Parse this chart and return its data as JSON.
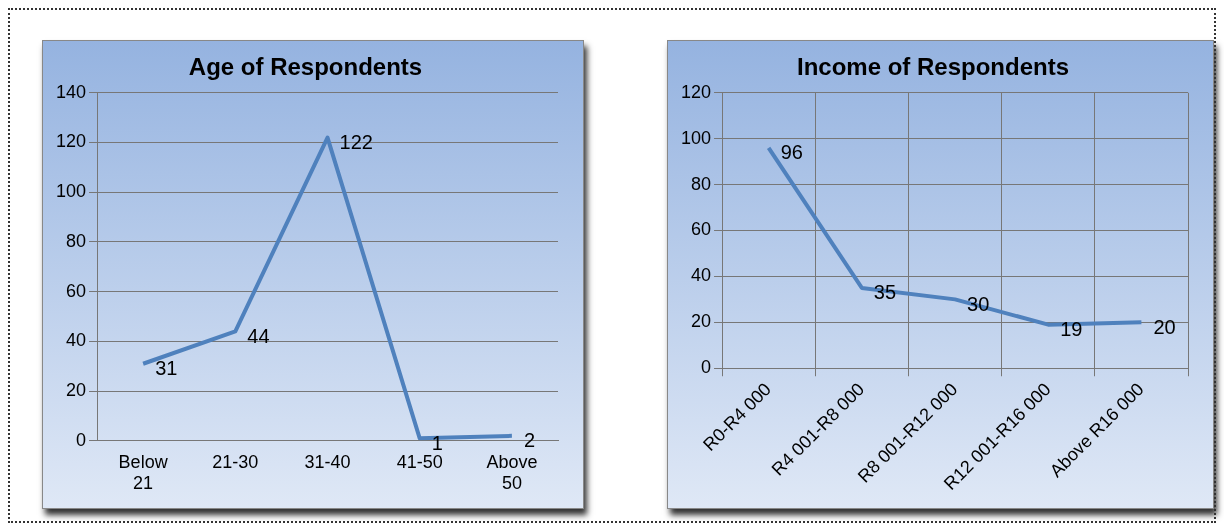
{
  "chart_data": [
    {
      "type": "line",
      "title": "Age of Respondents",
      "categories": [
        "Below 21",
        "21-30",
        "31-40",
        "41-50",
        "Above 50"
      ],
      "series": [
        {
          "color": "#4f81bd",
          "values": [
            31,
            44,
            122,
            1,
            2
          ]
        }
      ],
      "ylim": [
        0,
        140
      ],
      "yticks": [
        0,
        20,
        40,
        60,
        80,
        100,
        120,
        140
      ],
      "grid": "y",
      "data_labels": true,
      "legend": false
    },
    {
      "type": "line",
      "title": "Income of Respondents",
      "categories": [
        "R0-R4 000",
        "R4 001-R8 000",
        "R8 001-R12 000",
        "R12 001-R16 000",
        "Above R16 000"
      ],
      "series": [
        {
          "color": "#4f81bd",
          "values": [
            96,
            35,
            30,
            19,
            20
          ]
        }
      ],
      "ylim": [
        0,
        120
      ],
      "yticks": [
        0,
        20,
        40,
        60,
        80,
        100,
        120
      ],
      "grid": true,
      "data_labels": true,
      "legend": false
    }
  ]
}
